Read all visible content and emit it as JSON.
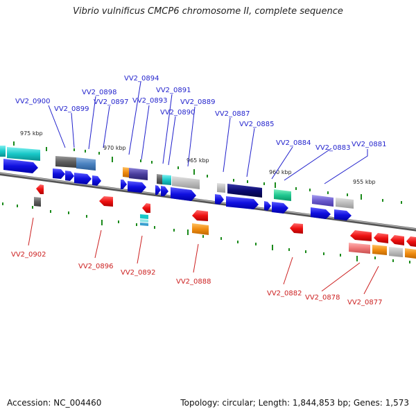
{
  "title": "Vibrio vulnificus CMCP6 chromosome II, complete sequence",
  "footer": {
    "accession": "Accession: NC_004460",
    "topology": "Topology: circular; Length: 1,844,853 bp; Genes: 1,573"
  },
  "ticks": [
    "975 kbp",
    "970 kbp",
    "965 kbp",
    "960 kbp",
    "955 kbp"
  ],
  "upper_labels": [
    "VV2_0900",
    "VV2_0899",
    "VV2_0898",
    "VV2_0897",
    "VV2_0894",
    "VV2_0893",
    "VV2_0891",
    "VV2_0890",
    "VV2_0889",
    "VV2_0887",
    "VV2_0885",
    "VV2_0884",
    "VV2_0883",
    "VV2_0881"
  ],
  "lower_labels": [
    "VV2_0902",
    "VV2_0896",
    "VV2_0892",
    "VV2_0888",
    "VV2_0882",
    "VV2_0878",
    "VV2_0877"
  ],
  "colors": {
    "forward_arrow": "#1010e0",
    "reverse_arrow": "#ee1111",
    "backbone": "#777777",
    "tick_mark": "#1a8a1a",
    "upper_label": "#1f1fcc",
    "lower_label": "#cc1f1f"
  }
}
